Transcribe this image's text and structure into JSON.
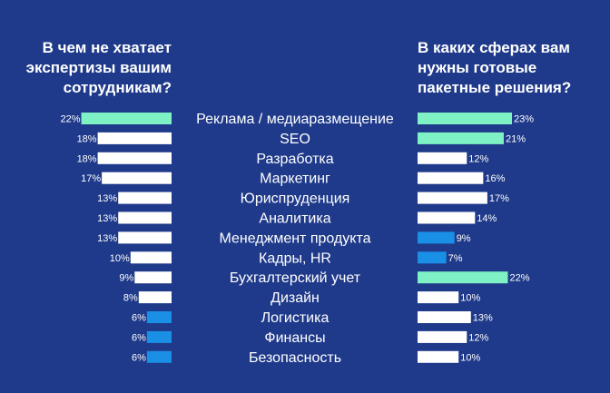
{
  "colors": {
    "background": "#1f3a8a",
    "white": "#ffffff",
    "green": "#7ef2c4",
    "blue": "#1a8fe6"
  },
  "chart_data": {
    "type": "bar",
    "categories": [
      "Реклама / медиаразмещение",
      "SEO",
      "Разработка",
      "Маркетинг",
      "Юриспруденция",
      "Аналитика",
      "Менеджмент продукта",
      "Кадры, HR",
      "Бухгалтерский учет",
      "Дизайн",
      "Логистика",
      "Финансы",
      "Безопасность"
    ],
    "series": [
      {
        "name": "В чем не хватает экспертизы вашим сотрудникам?",
        "values": [
          22,
          18,
          18,
          17,
          13,
          13,
          13,
          10,
          9,
          8,
          6,
          6,
          6
        ],
        "labels": [
          "22%",
          "18%",
          "18%",
          "17%",
          "13%",
          "13%",
          "13%",
          "10%",
          "9%",
          "8%",
          "6%",
          "6%",
          "6%"
        ],
        "bar_colors": [
          "green",
          "white",
          "white",
          "white",
          "white",
          "white",
          "white",
          "white",
          "white",
          "white",
          "blue",
          "blue",
          "blue"
        ]
      },
      {
        "name": "В каких сферах вам нужны готовые пакетные решения?",
        "values": [
          23,
          21,
          12,
          16,
          17,
          14,
          9,
          7,
          22,
          10,
          13,
          12,
          10
        ],
        "labels": [
          "23%",
          "21%",
          "12%",
          "16%",
          "17%",
          "14%",
          "9%",
          "7%",
          "22%",
          "10%",
          "13%",
          "12%",
          "10%"
        ],
        "bar_colors": [
          "green",
          "green",
          "white",
          "white",
          "white",
          "white",
          "blue",
          "blue",
          "green",
          "white",
          "white",
          "white",
          "white"
        ]
      }
    ],
    "units": "%"
  }
}
